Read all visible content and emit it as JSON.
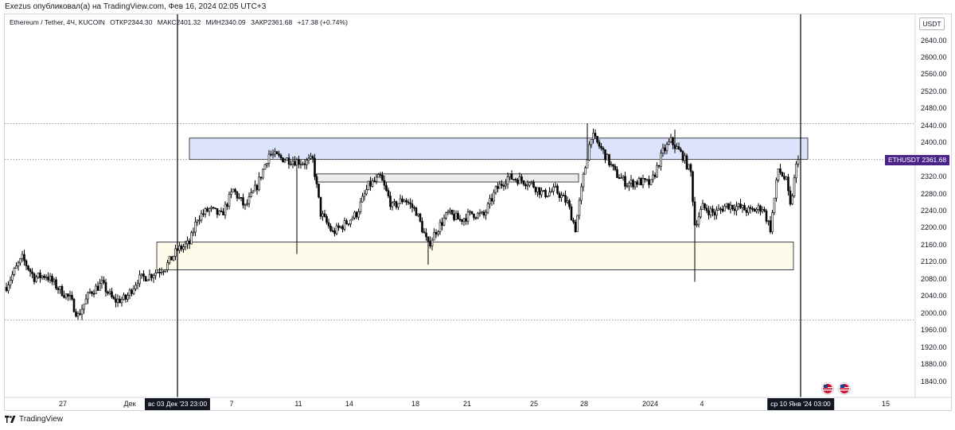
{
  "header": {
    "published_line": "Exezus опубликовал(а) на TradingView.com, Фев 16, 2024 02:05 UTC+3"
  },
  "legend": {
    "symbol": "Ethereum / Tether, 4Ч, KUCOIN",
    "open": "ОТКР2344.30",
    "high": "МАКС2401.32",
    "low": "МИН2340.09",
    "close": "ЗАКР2361.68",
    "change": "+17.38 (+0.74%)"
  },
  "price_scale": {
    "currency": "USDT",
    "ticks": [
      "2640.00",
      "2600.00",
      "2560.00",
      "2520.00",
      "2480.00",
      "2440.00",
      "2400.00",
      "2360.00",
      "2320.00",
      "2280.00",
      "2240.00",
      "2200.00",
      "2160.00",
      "2120.00",
      "2080.00",
      "2040.00",
      "2000.00",
      "1960.00",
      "1920.00",
      "1880.00",
      "1840.00"
    ]
  },
  "last_price_tag": {
    "symbol": "ETHUSDT",
    "price": "2361.68"
  },
  "time_scale": {
    "ticks": [
      "27",
      "Дек",
      "7",
      "11",
      "14",
      "18",
      "21",
      "25",
      "28",
      "2024",
      "4",
      "15"
    ],
    "marker_left": "вс 03 Дек '23   23:00",
    "marker_right": "ср 10 Янв '24   03:00"
  },
  "branding": {
    "label": "TradingView"
  },
  "colors": {
    "up": "#ffffff",
    "down": "#000000",
    "candle_border": "#000000",
    "resistance_zone": "#dbe4fb",
    "mid_zone": "#ebebeb",
    "support_zone": "#fefbea",
    "price_tag": "#4a2587"
  },
  "chart_data": {
    "type": "candlestick",
    "symbol": "ETHUSDT",
    "timeframe": "4H",
    "ylim": [
      1820,
      2660
    ],
    "y_ticks": [
      2640,
      2600,
      2560,
      2520,
      2480,
      2440,
      2400,
      2360,
      2320,
      2280,
      2240,
      2200,
      2160,
      2120,
      2080,
      2040,
      2000,
      1960,
      1920,
      1880,
      1840
    ],
    "x_ticks": [
      "27",
      "Дек",
      "7",
      "11",
      "14",
      "18",
      "21",
      "25",
      "28",
      "2024",
      "4",
      "15"
    ],
    "anchor_points": [
      {
        "index": 0,
        "close": 2065
      },
      {
        "index": 4,
        "close": 2100
      },
      {
        "index": 8,
        "close": 2130
      },
      {
        "index": 14,
        "close": 2085
      },
      {
        "index": 20,
        "close": 2090
      },
      {
        "index": 26,
        "close": 2060
      },
      {
        "index": 32,
        "close": 2035
      },
      {
        "index": 36,
        "close": 1995
      },
      {
        "index": 42,
        "close": 2050
      },
      {
        "index": 48,
        "close": 2070
      },
      {
        "index": 54,
        "close": 2030
      },
      {
        "index": 60,
        "close": 2035
      },
      {
        "index": 66,
        "close": 2080
      },
      {
        "index": 72,
        "close": 2090
      },
      {
        "index": 80,
        "close": 2110
      },
      {
        "index": 86,
        "close": 2150
      },
      {
        "index": 92,
        "close": 2165
      },
      {
        "index": 96,
        "close": 2225
      },
      {
        "index": 102,
        "close": 2245
      },
      {
        "index": 108,
        "close": 2230
      },
      {
        "index": 114,
        "close": 2290
      },
      {
        "index": 120,
        "close": 2250
      },
      {
        "index": 126,
        "close": 2300
      },
      {
        "index": 132,
        "close": 2375
      },
      {
        "index": 138,
        "close": 2365
      },
      {
        "index": 144,
        "close": 2360
      },
      {
        "index": 150,
        "close": 2355
      },
      {
        "index": 154,
        "close": 2360
      },
      {
        "index": 158,
        "close": 2235
      },
      {
        "index": 164,
        "close": 2190
      },
      {
        "index": 170,
        "close": 2210
      },
      {
        "index": 176,
        "close": 2235
      },
      {
        "index": 182,
        "close": 2300
      },
      {
        "index": 188,
        "close": 2320
      },
      {
        "index": 194,
        "close": 2250
      },
      {
        "index": 200,
        "close": 2270
      },
      {
        "index": 206,
        "close": 2240
      },
      {
        "index": 212,
        "close": 2160
      },
      {
        "index": 216,
        "close": 2195
      },
      {
        "index": 222,
        "close": 2235
      },
      {
        "index": 228,
        "close": 2220
      },
      {
        "index": 234,
        "close": 2235
      },
      {
        "index": 240,
        "close": 2230
      },
      {
        "index": 246,
        "close": 2290
      },
      {
        "index": 252,
        "close": 2320
      },
      {
        "index": 258,
        "close": 2315
      },
      {
        "index": 264,
        "close": 2305
      },
      {
        "index": 270,
        "close": 2280
      },
      {
        "index": 276,
        "close": 2290
      },
      {
        "index": 282,
        "close": 2260
      },
      {
        "index": 286,
        "close": 2200
      },
      {
        "index": 290,
        "close": 2320
      },
      {
        "index": 294,
        "close": 2420
      },
      {
        "index": 300,
        "close": 2380
      },
      {
        "index": 306,
        "close": 2330
      },
      {
        "index": 312,
        "close": 2305
      },
      {
        "index": 318,
        "close": 2310
      },
      {
        "index": 324,
        "close": 2305
      },
      {
        "index": 330,
        "close": 2380
      },
      {
        "index": 334,
        "close": 2405
      },
      {
        "index": 340,
        "close": 2370
      },
      {
        "index": 344,
        "close": 2330
      },
      {
        "index": 346,
        "close": 2210
      },
      {
        "index": 350,
        "close": 2250
      },
      {
        "index": 356,
        "close": 2235
      },
      {
        "index": 362,
        "close": 2255
      },
      {
        "index": 368,
        "close": 2250
      },
      {
        "index": 374,
        "close": 2240
      },
      {
        "index": 380,
        "close": 2250
      },
      {
        "index": 384,
        "close": 2200
      },
      {
        "index": 388,
        "close": 2340
      },
      {
        "index": 392,
        "close": 2310
      },
      {
        "index": 394,
        "close": 2250
      },
      {
        "index": 397,
        "close": 2345
      },
      {
        "index": 398,
        "close": 2361.68
      }
    ],
    "zones": [
      {
        "name": "resistance",
        "from": "Дек 3",
        "to": "Янв 10",
        "low": 2362,
        "high": 2412
      },
      {
        "name": "mid",
        "from": "Дек 11",
        "to": "Дек 27",
        "low": 2309,
        "high": 2328
      },
      {
        "name": "support",
        "from": "Дек 1",
        "to": "Янв 9",
        "low": 2103,
        "high": 2168
      }
    ],
    "horizontal_levels": [
      2446,
      2361.68,
      1985
    ],
    "vertical_markers": [
      "вс 03 Дек '23 23:00",
      "ср 10 Янв '24 03:00"
    ],
    "last_price": 2361.68
  }
}
